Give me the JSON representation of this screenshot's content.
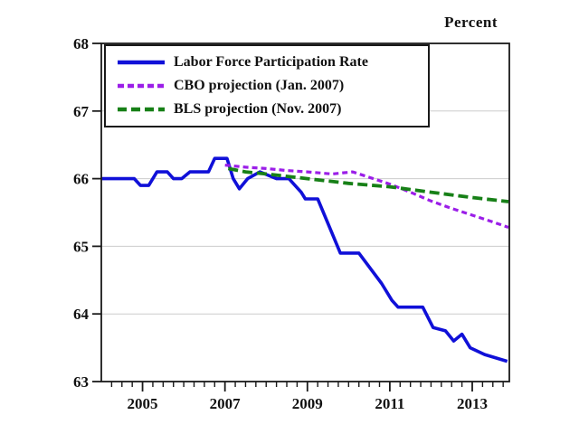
{
  "figure": {
    "unit_label": "Percent"
  },
  "chart_data": {
    "type": "line",
    "title": "",
    "ylabel": "Percent",
    "xlabel": "",
    "x_range": [
      2004,
      2013.9
    ],
    "y_range": [
      63,
      68
    ],
    "x_ticks": [
      2005,
      2007,
      2009,
      2011,
      2013
    ],
    "x_minor_tick_step": 0.25,
    "y_ticks": [
      63,
      64,
      65,
      66,
      67,
      68
    ],
    "gridline_values": [
      64,
      65,
      66,
      67
    ],
    "grid": true,
    "legend_position": "top-left",
    "colors": {
      "axis": "#1a1a1a",
      "grid": "#cbcbcb",
      "text": "#111111",
      "background": "#ffffff"
    },
    "series": [
      {
        "name": "Labor Force Participation Rate",
        "slug": "lfpr",
        "color": "#1010d8",
        "style": "solid",
        "width": 3.6,
        "points": [
          [
            2004.0,
            66.0
          ],
          [
            2004.8,
            66.0
          ],
          [
            2004.95,
            65.9
          ],
          [
            2005.15,
            65.9
          ],
          [
            2005.35,
            66.1
          ],
          [
            2005.6,
            66.1
          ],
          [
            2005.75,
            66.0
          ],
          [
            2005.95,
            66.0
          ],
          [
            2006.15,
            66.1
          ],
          [
            2006.6,
            66.1
          ],
          [
            2006.75,
            66.3
          ],
          [
            2007.05,
            66.3
          ],
          [
            2007.2,
            66.0
          ],
          [
            2007.35,
            65.85
          ],
          [
            2007.55,
            66.0
          ],
          [
            2007.85,
            66.1
          ],
          [
            2008.05,
            66.05
          ],
          [
            2008.25,
            66.0
          ],
          [
            2008.55,
            66.0
          ],
          [
            2008.85,
            65.8
          ],
          [
            2008.95,
            65.7
          ],
          [
            2009.25,
            65.7
          ],
          [
            2009.8,
            64.9
          ],
          [
            2010.25,
            64.9
          ],
          [
            2010.8,
            64.45
          ],
          [
            2011.05,
            64.2
          ],
          [
            2011.2,
            64.1
          ],
          [
            2011.8,
            64.1
          ],
          [
            2012.05,
            63.8
          ],
          [
            2012.35,
            63.75
          ],
          [
            2012.55,
            63.6
          ],
          [
            2012.75,
            63.7
          ],
          [
            2012.95,
            63.5
          ],
          [
            2013.3,
            63.4
          ],
          [
            2013.85,
            63.3
          ]
        ]
      },
      {
        "name": "CBO projection (Jan. 2007)",
        "slug": "cbo-projection",
        "color": "#9b1ee8",
        "style": "dashed-short",
        "width": 3.2,
        "points": [
          [
            2007.0,
            66.2
          ],
          [
            2007.5,
            66.17
          ],
          [
            2008.0,
            66.15
          ],
          [
            2008.5,
            66.12
          ],
          [
            2009.0,
            66.1
          ],
          [
            2009.6,
            66.07
          ],
          [
            2010.1,
            66.1
          ],
          [
            2010.5,
            66.02
          ],
          [
            2011.0,
            65.92
          ],
          [
            2011.5,
            65.8
          ],
          [
            2012.0,
            65.67
          ],
          [
            2012.5,
            65.56
          ],
          [
            2013.0,
            65.46
          ],
          [
            2013.5,
            65.36
          ],
          [
            2013.88,
            65.28
          ]
        ]
      },
      {
        "name": "BLS projection (Nov. 2007)",
        "slug": "bls-projection",
        "color": "#178017",
        "style": "dashed-long",
        "width": 3.8,
        "points": [
          [
            2007.08,
            66.15
          ],
          [
            2007.5,
            66.1
          ],
          [
            2008.0,
            66.07
          ],
          [
            2009.0,
            66.0
          ],
          [
            2010.0,
            65.93
          ],
          [
            2011.0,
            65.88
          ],
          [
            2011.5,
            65.84
          ],
          [
            2012.0,
            65.8
          ],
          [
            2013.0,
            65.72
          ],
          [
            2013.88,
            65.66
          ]
        ]
      }
    ]
  }
}
